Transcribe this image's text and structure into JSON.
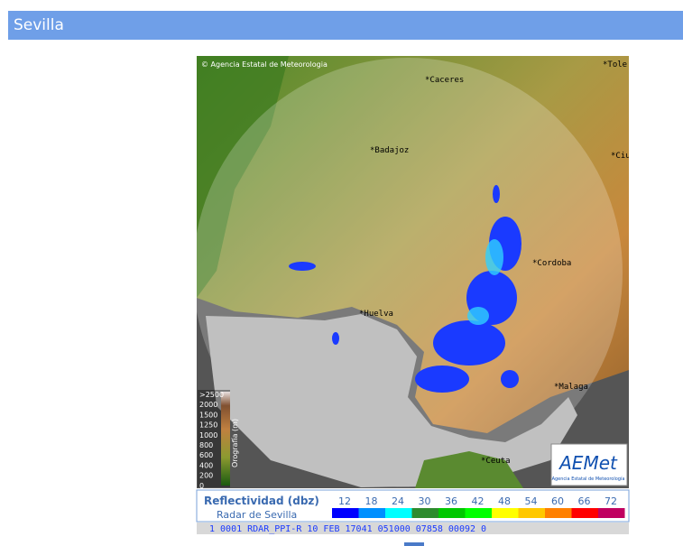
{
  "header": {
    "title": "Sevilla"
  },
  "map": {
    "copyright": "© Agencia Estatal de Meteorologia",
    "cities": [
      "*Caceres",
      "*Badajoz",
      "*Cordoba",
      "*Huelva",
      "*Malaga",
      "*Ceuta",
      "*Tole",
      "*Ciu"
    ],
    "orography_title": "Orografía (m)",
    "orography_labels": [
      ">2500",
      "2000",
      "1500",
      "1250",
      "1000",
      "800",
      "600",
      "400",
      "200",
      "0"
    ],
    "logo": "AEMet",
    "logo_caption": "Agencia Estatal de Meteorología"
  },
  "legend": {
    "title": "Reflectividad (dbz)",
    "subtitle": "Radar de Sevilla",
    "scale": [
      {
        "value": 12,
        "color": "#0000ff"
      },
      {
        "value": 18,
        "color": "#0090ff"
      },
      {
        "value": 24,
        "color": "#00ffff"
      },
      {
        "value": 30,
        "color": "#2e8b2e"
      },
      {
        "value": 36,
        "color": "#00c800"
      },
      {
        "value": 42,
        "color": "#00ff00"
      },
      {
        "value": 48,
        "color": "#ffff00"
      },
      {
        "value": 54,
        "color": "#ffc800"
      },
      {
        "value": 60,
        "color": "#ff8000"
      },
      {
        "value": 66,
        "color": "#ff0000"
      },
      {
        "value": 72,
        "color": "#c00060"
      }
    ]
  },
  "status": "1 0001 RDAR_PPI-R   10 FEB 17041 051000 07858 00092 0"
}
